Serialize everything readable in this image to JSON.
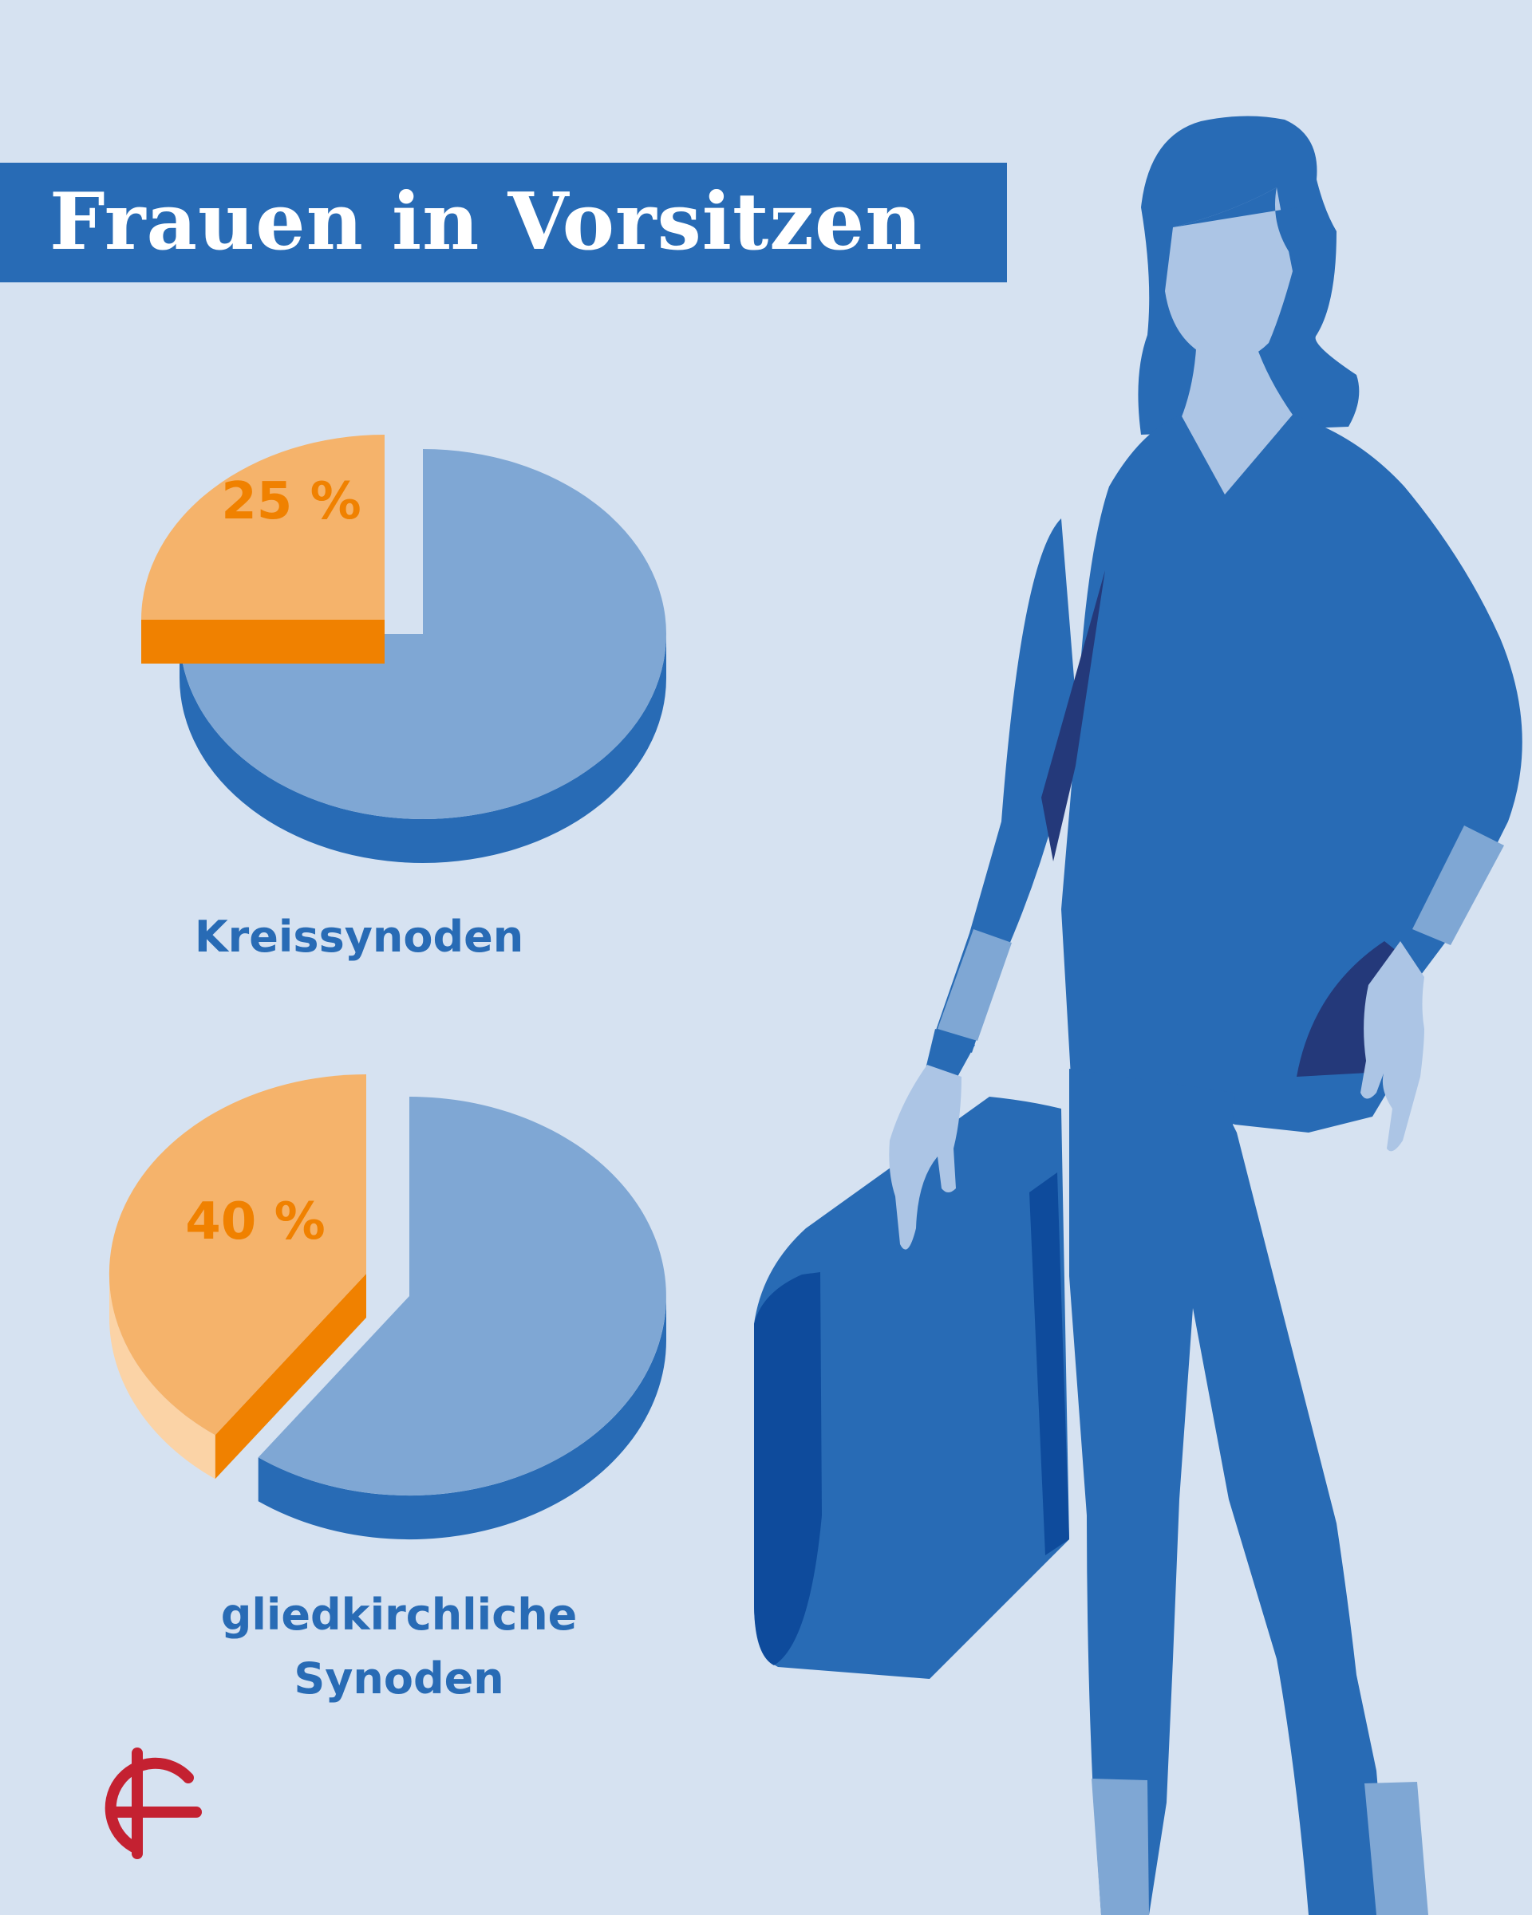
{
  "title": "Frauen in Vorsitzen",
  "colors": {
    "background": "#d6e2f1",
    "title_bar": "#286bb5",
    "women_slice": "#f5b36b",
    "women_slice_side": "#f08100",
    "rest_slice": "#7fa7d4",
    "rest_slice_side": "#286bb5",
    "logo": "#c42131"
  },
  "logo_icon": "circle-cross-logo",
  "illustration": "woman-with-bag-illustration",
  "chart_data": [
    {
      "type": "pie",
      "title": "Kreissynoden",
      "slices": [
        {
          "name": "",
          "value": 25,
          "label": "25 %"
        },
        {
          "name": "",
          "value": 75,
          "label": ""
        }
      ]
    },
    {
      "type": "pie",
      "title": "gliedkirchliche Synoden",
      "title_lines": [
        "gliedkirchliche",
        "Synoden"
      ],
      "slices": [
        {
          "name": "",
          "value": 40,
          "label": "40 %"
        },
        {
          "name": "",
          "value": 60,
          "label": ""
        }
      ]
    }
  ]
}
